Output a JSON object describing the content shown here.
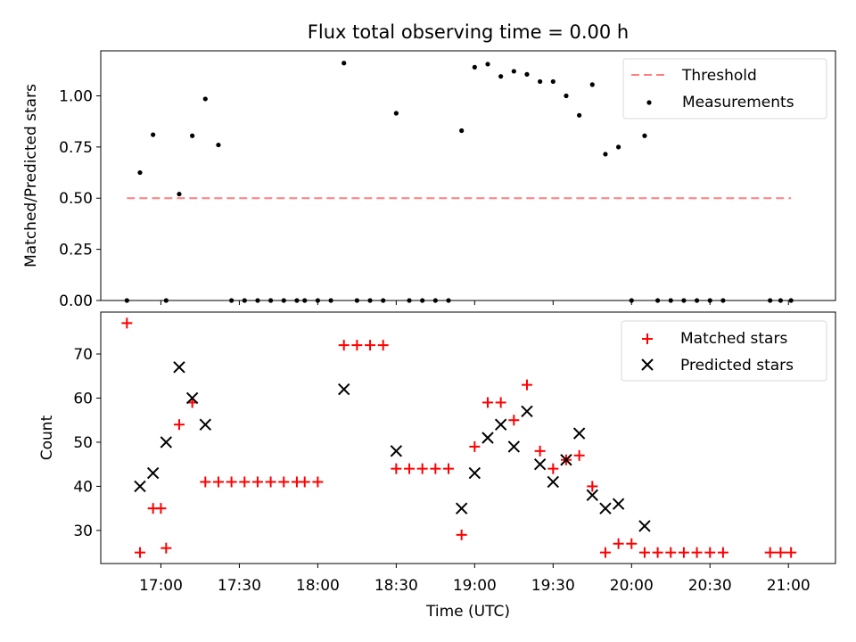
{
  "chart_data": [
    {
      "type": "scatter",
      "title": "Flux total observing time = 0.00 h",
      "xlabel": "",
      "ylabel": "Matched/Predicted stars",
      "ylim": [
        0,
        1.22
      ],
      "xlim_minutes": [
        997,
        1278
      ],
      "yticks": [
        "0.00",
        "0.25",
        "0.50",
        "0.75",
        "1.00"
      ],
      "legend_position": "top-right",
      "threshold": {
        "name": "Threshold",
        "value": 0.5,
        "x_range": [
          "16:47",
          "21:01"
        ],
        "color": "#ff7f7f"
      },
      "series": [
        {
          "name": "Measurements",
          "color": "#000000",
          "x": [
            "16:47",
            "16:52",
            "16:57",
            "17:02",
            "17:07",
            "17:12",
            "17:17",
            "17:22",
            "17:27",
            "17:32",
            "17:37",
            "17:42",
            "17:47",
            "17:52",
            "17:55",
            "18:00",
            "18:05",
            "18:10",
            "18:15",
            "18:20",
            "18:25",
            "18:30",
            "18:35",
            "18:40",
            "18:45",
            "18:50",
            "18:55",
            "19:00",
            "19:05",
            "19:10",
            "19:15",
            "19:20",
            "19:25",
            "19:30",
            "19:35",
            "19:40",
            "19:45",
            "19:50",
            "19:55",
            "20:00",
            "20:05",
            "20:10",
            "20:15",
            "20:20",
            "20:25",
            "20:30",
            "20:35",
            "20:53",
            "20:57",
            "21:01"
          ],
          "y": [
            0,
            0.625,
            0.81,
            0,
            0.52,
            0.805,
            0.985,
            0.76,
            0,
            0,
            0,
            0,
            0,
            0,
            0,
            0,
            0,
            1.16,
            0,
            0,
            0,
            0.915,
            0,
            0,
            0,
            0,
            0.83,
            1.14,
            1.155,
            1.095,
            1.12,
            1.105,
            1.07,
            1.07,
            1.0,
            0.905,
            1.055,
            0.715,
            0.75,
            0,
            0.805,
            0,
            0,
            0,
            0,
            0,
            0,
            0,
            0,
            0
          ]
        }
      ]
    },
    {
      "type": "scatter",
      "title": "",
      "xlabel": "Time (UTC)",
      "ylabel": "Count",
      "ylim": [
        22.5,
        79.5
      ],
      "xlim_minutes": [
        997,
        1278
      ],
      "yticks": [
        "30",
        "40",
        "50",
        "60",
        "70"
      ],
      "xticks": [
        "17:00",
        "17:30",
        "18:00",
        "18:30",
        "19:00",
        "19:30",
        "20:00",
        "20:30",
        "21:00"
      ],
      "legend_position": "top-right",
      "series": [
        {
          "name": "Matched stars",
          "color": "#ff0000",
          "marker": "+",
          "x": [
            "16:47",
            "16:52",
            "16:57",
            "17:00",
            "17:02",
            "17:07",
            "17:12",
            "17:17",
            "17:22",
            "17:27",
            "17:32",
            "17:37",
            "17:42",
            "17:47",
            "17:52",
            "17:55",
            "18:00",
            "18:10",
            "18:15",
            "18:20",
            "18:25",
            "18:30",
            "18:35",
            "18:40",
            "18:45",
            "18:50",
            "18:55",
            "19:00",
            "19:05",
            "19:10",
            "19:15",
            "19:20",
            "19:25",
            "19:30",
            "19:35",
            "19:40",
            "19:45",
            "19:50",
            "19:55",
            "20:00",
            "20:05",
            "20:10",
            "20:15",
            "20:20",
            "20:25",
            "20:30",
            "20:35",
            "20:53",
            "20:57",
            "21:01"
          ],
          "y": [
            77,
            25,
            35,
            35,
            26,
            54,
            59,
            41,
            41,
            41,
            41,
            41,
            41,
            41,
            41,
            41,
            41,
            72,
            72,
            72,
            72,
            44,
            44,
            44,
            44,
            44,
            29,
            49,
            59,
            59,
            55,
            63,
            48,
            44,
            46,
            47,
            40,
            25,
            27,
            27,
            25,
            25,
            25,
            25,
            25,
            25,
            25,
            25,
            25,
            25
          ]
        },
        {
          "name": "Predicted stars",
          "color": "#000000",
          "marker": "x",
          "x": [
            "16:52",
            "16:57",
            "17:02",
            "17:07",
            "17:12",
            "17:17",
            "18:10",
            "18:30",
            "18:55",
            "19:00",
            "19:05",
            "19:10",
            "19:15",
            "19:20",
            "19:25",
            "19:30",
            "19:35",
            "19:40",
            "19:45",
            "19:50",
            "19:55",
            "20:05"
          ],
          "y": [
            40,
            43,
            50,
            67,
            60,
            54,
            62,
            48,
            35,
            43,
            51,
            54,
            49,
            57,
            45,
            41,
            46,
            52,
            38,
            35,
            36,
            31
          ]
        }
      ]
    }
  ]
}
